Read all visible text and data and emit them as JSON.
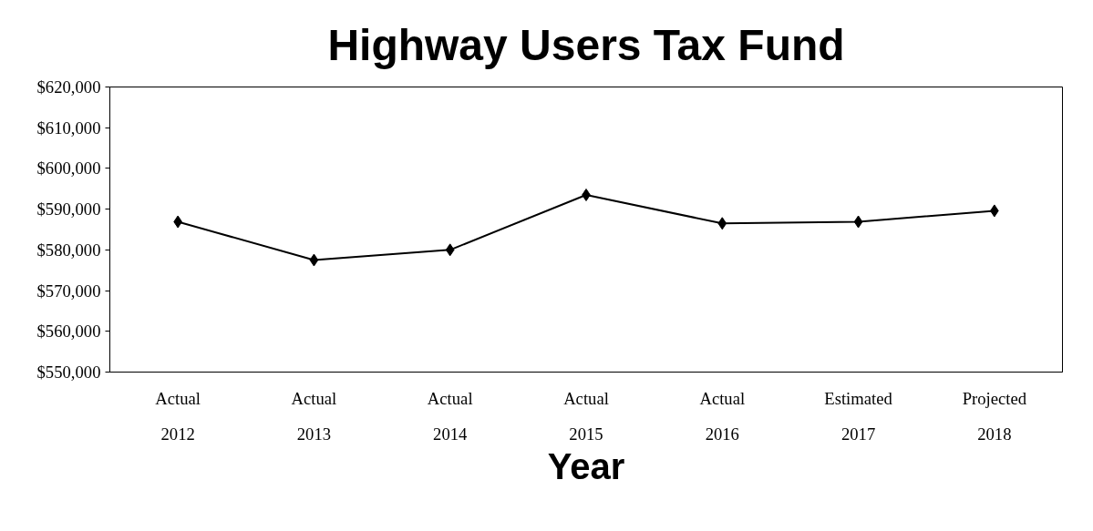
{
  "chart_data": {
    "type": "line",
    "title": "Highway Users Tax Fund",
    "xlabel": "Year",
    "categories": [
      "Actual\n2012",
      "Actual\n2013",
      "Actual\n2014",
      "Actual\n2015",
      "Actual\n2016",
      "Estimated\n2017",
      "Projected\n2018"
    ],
    "series": [
      {
        "color": "#000000",
        "values": [
          586900,
          577500,
          580000,
          593500,
          586500,
          586900,
          589600
        ]
      }
    ],
    "ylim": [
      550000,
      620000
    ],
    "yticks": [
      {
        "value": 550000,
        "label": "$550,000"
      },
      {
        "value": 560000,
        "label": "$560,000"
      },
      {
        "value": 570000,
        "label": "$570,000"
      },
      {
        "value": 580000,
        "label": "$580,000"
      },
      {
        "value": 590000,
        "label": "$590,000"
      },
      {
        "value": 600000,
        "label": "$600,000"
      },
      {
        "value": 610000,
        "label": "$610,000"
      },
      {
        "value": 620000,
        "label": "$620,000"
      }
    ],
    "marker": "diamond",
    "line_style": "solid",
    "grid": false
  }
}
